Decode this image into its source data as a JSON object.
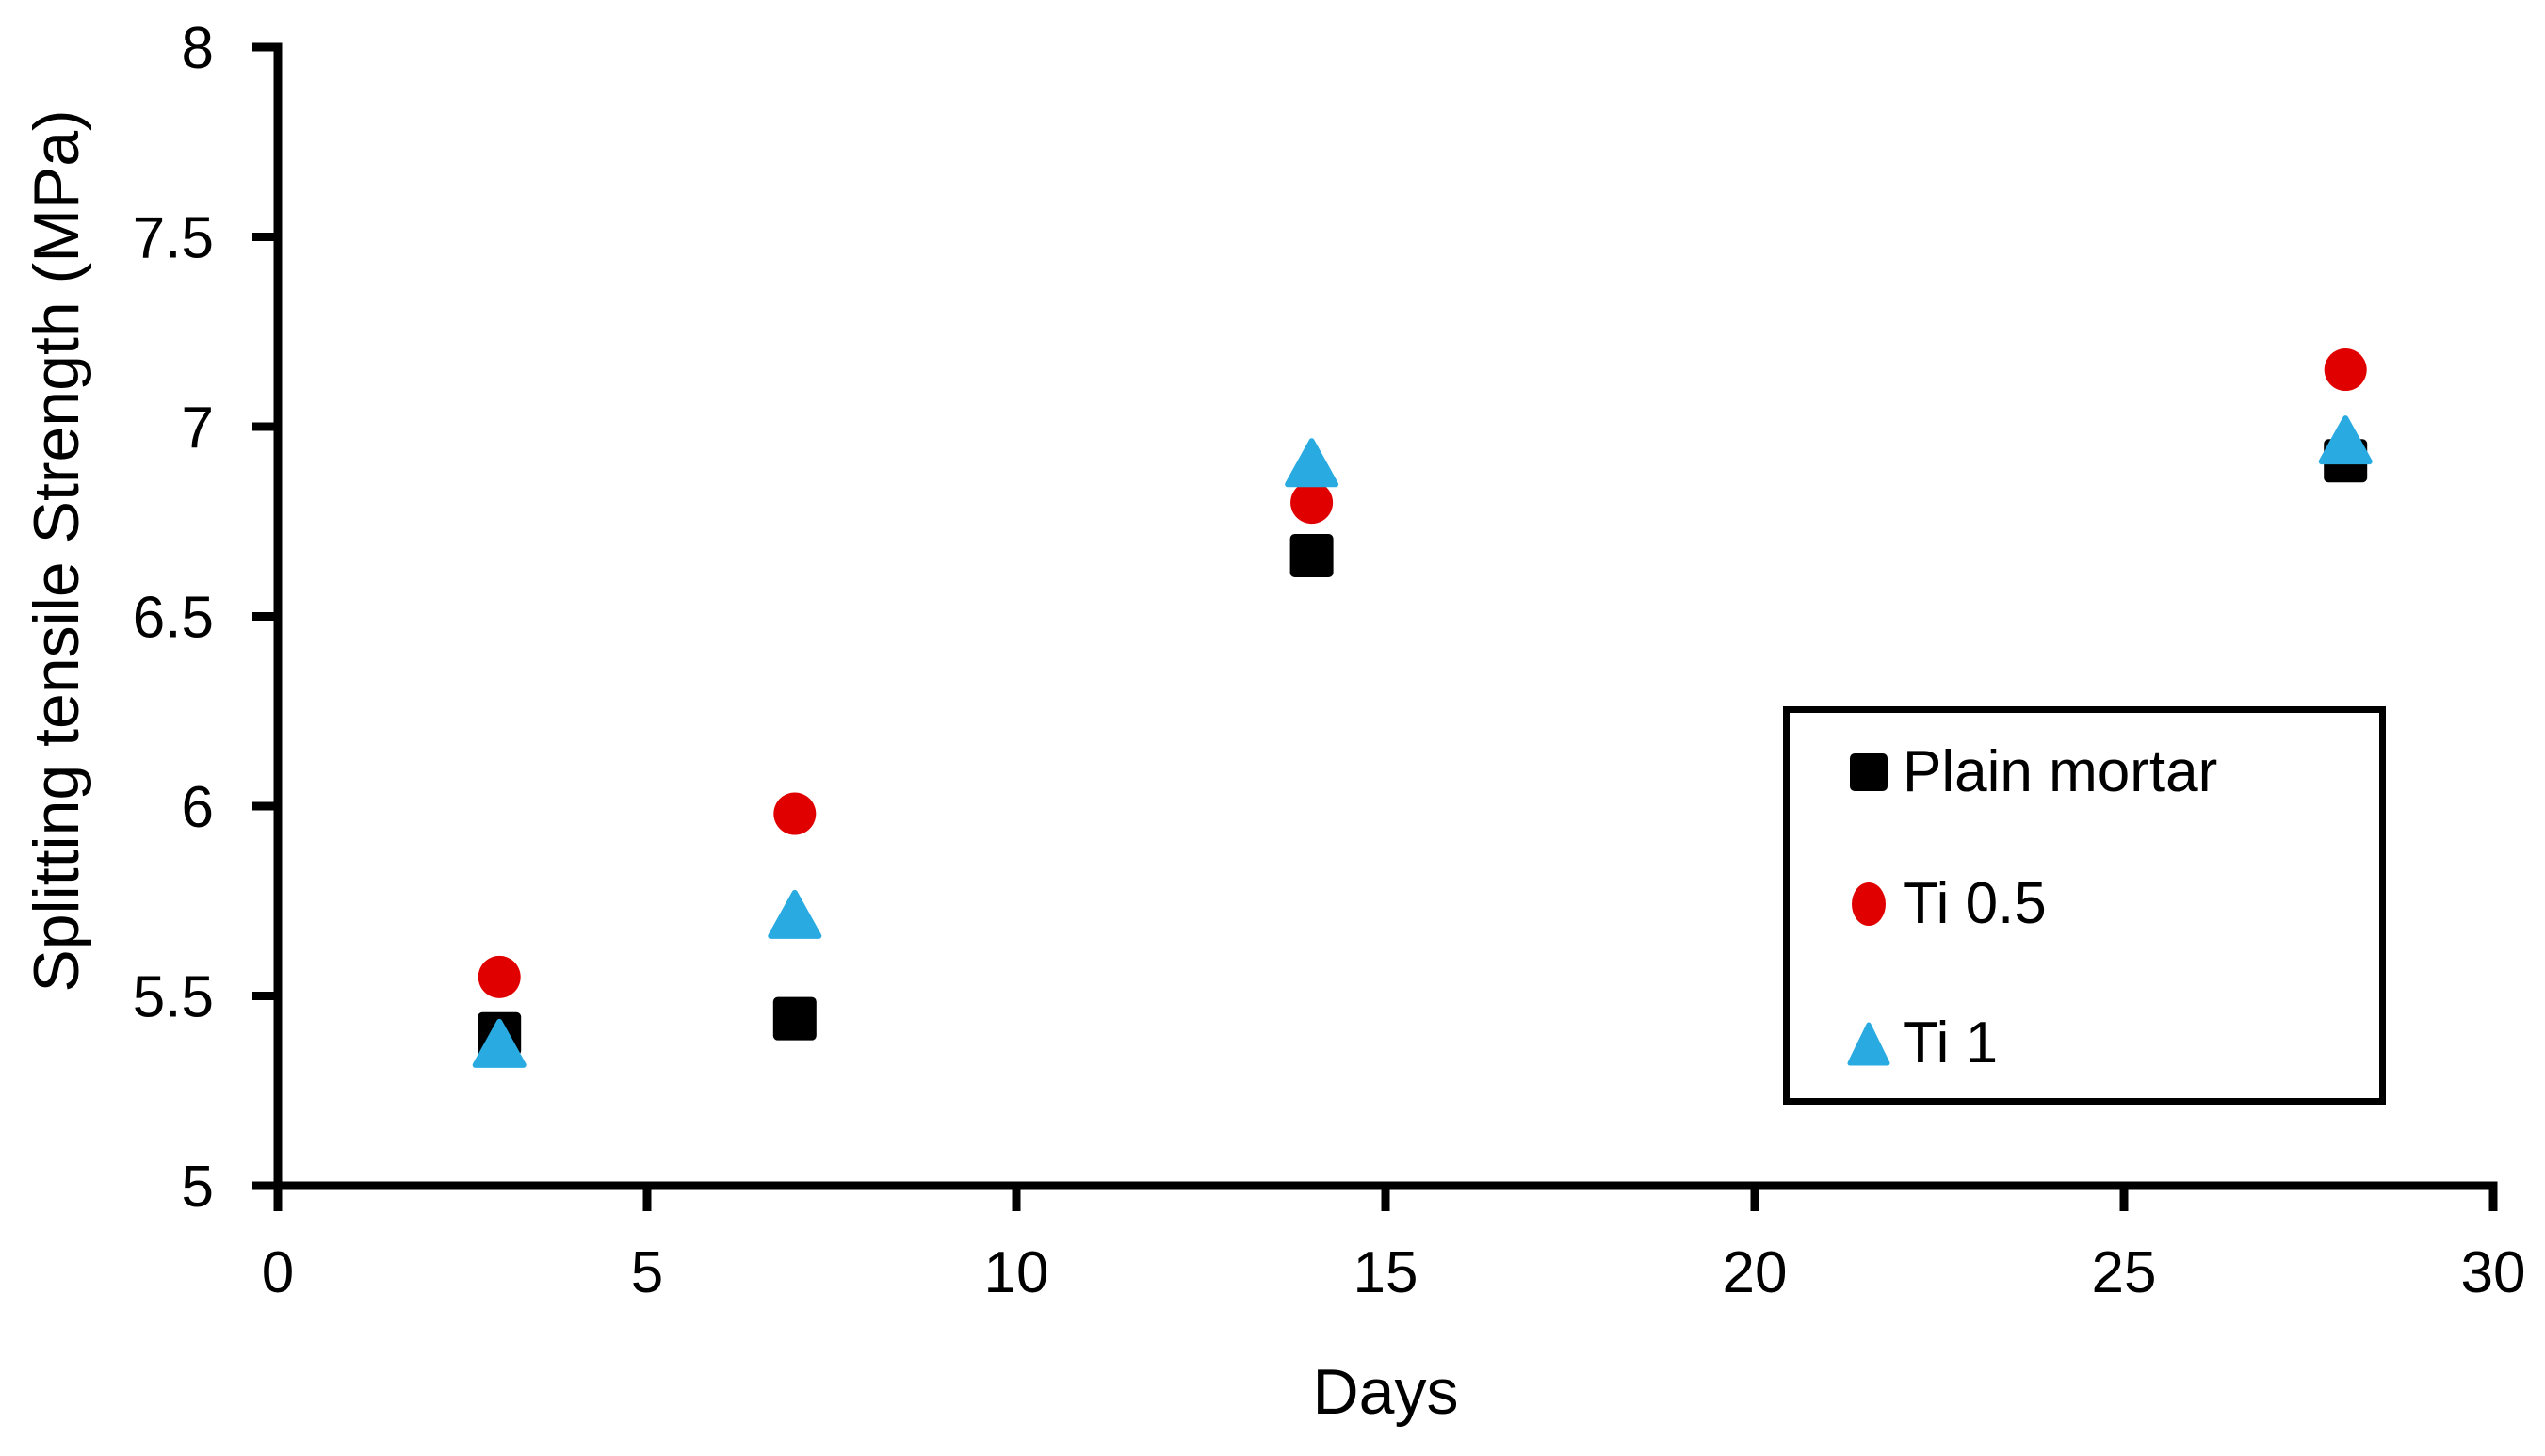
{
  "chart_data": {
    "type": "scatter",
    "title": "",
    "xlabel": "Days",
    "ylabel": "Splitting tensile Strength (MPa)",
    "xlim": [
      0,
      30
    ],
    "ylim": [
      5,
      8
    ],
    "x_ticks": [
      0,
      5,
      10,
      15,
      20,
      25,
      30
    ],
    "x_tick_labels": [
      "0",
      "5",
      "10",
      "15",
      "20",
      "25",
      "30"
    ],
    "y_ticks": [
      5,
      5.5,
      6,
      6.5,
      7,
      7.5,
      8
    ],
    "y_tick_labels": [
      "5",
      "5.5",
      "6",
      "6.5",
      "7",
      "7.5",
      "8"
    ],
    "grid": false,
    "legend_position": "inside-right",
    "axis_color": "#000000",
    "x": [
      3,
      7,
      14,
      28
    ],
    "series": [
      {
        "name": "Plain mortar",
        "marker": "square",
        "color": "#000000",
        "values": [
          5.4,
          5.44,
          6.66,
          6.91
        ]
      },
      {
        "name": "Ti 0.5",
        "marker": "circle",
        "color": "#E00000",
        "values": [
          5.55,
          5.98,
          6.8,
          7.15
        ]
      },
      {
        "name": "Ti 1",
        "marker": "triangle",
        "color": "#29ABE2",
        "values": [
          5.37,
          5.71,
          6.9,
          6.96
        ]
      }
    ]
  }
}
